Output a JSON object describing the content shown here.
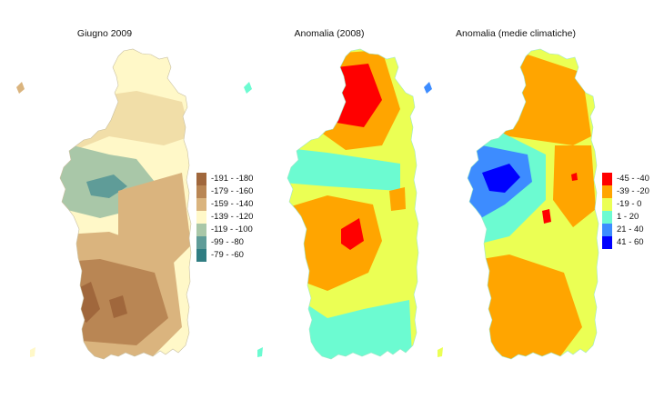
{
  "panels": [
    {
      "title": "Giugno 2009",
      "legend": [
        {
          "label": "-191 - -180",
          "color": "#a0673c"
        },
        {
          "label": "-179 - -160",
          "color": "#b98654"
        },
        {
          "label": "-159 - -140",
          "color": "#dab47e"
        },
        {
          "label": "-139 - -120",
          "color": "#fff8c8"
        },
        {
          "label": "-119 - -100",
          "color": "#a9c7a8"
        },
        {
          "label": "-99 - -80",
          "color": "#5f9c98"
        },
        {
          "label": "-79 - -60",
          "color": "#307d82"
        }
      ]
    },
    {
      "title": "Anomalia (2008)",
      "legend": []
    },
    {
      "title": "Anomalia (medie climatiche)",
      "legend": [
        {
          "label": "-45 - -40",
          "color": "#ff0000"
        },
        {
          "label": "-39 - -20",
          "color": "#ffa500"
        },
        {
          "label": "-19 - 0",
          "color": "#ebff54"
        },
        {
          "label": "1 - 20",
          "color": "#6cfbd1"
        },
        {
          "label": "21 - 40",
          "color": "#3d8cff"
        },
        {
          "label": "41 - 60",
          "color": "#0000ff"
        }
      ]
    }
  ]
}
